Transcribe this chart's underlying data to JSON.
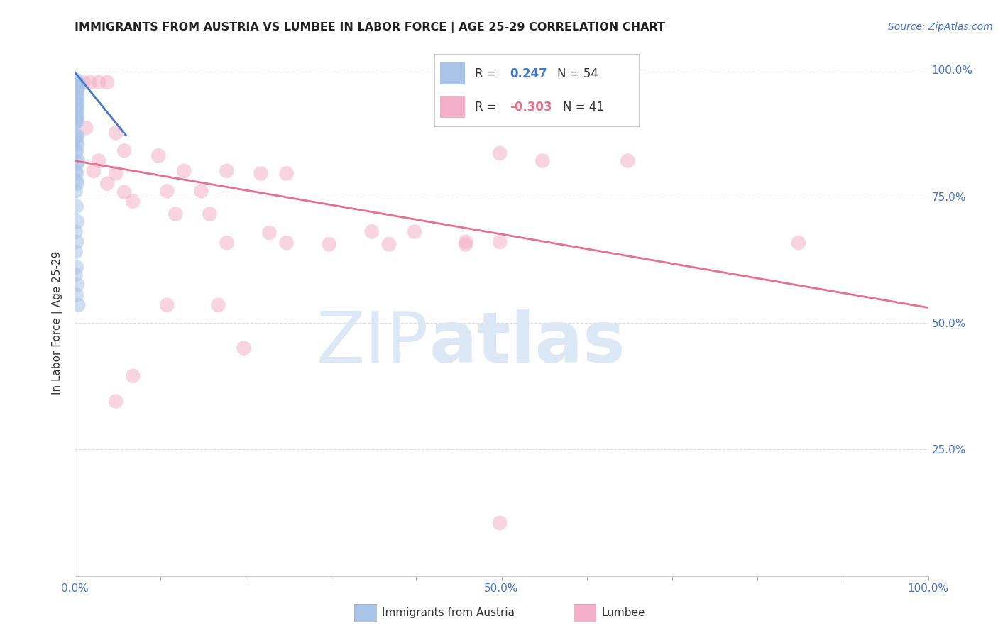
{
  "title": "IMMIGRANTS FROM AUSTRIA VS LUMBEE IN LABOR FORCE | AGE 25-29 CORRELATION CHART",
  "source": "Source: ZipAtlas.com",
  "ylabel": "In Labor Force | Age 25-29",
  "xlim": [
    0.0,
    1.0
  ],
  "ylim": [
    0.0,
    1.0
  ],
  "xticklabels": [
    "0.0%",
    "",
    "",
    "",
    "",
    "50.0%",
    "",
    "",
    "",
    "",
    "100.0%"
  ],
  "yticklabels_right": [
    "25.0%",
    "50.0%",
    "75.0%",
    "100.0%"
  ],
  "yticks_right": [
    0.25,
    0.5,
    0.75,
    1.0
  ],
  "austria_color": "#aac4e8",
  "lumbee_color": "#f4afc8",
  "austria_line_color": "#4477cc",
  "lumbee_line_color": "#e8708a",
  "background_color": "#ffffff",
  "grid_color": "#dddddd",
  "right_axis_color": "#4477cc",
  "watermark_color": "#dce8f5",
  "austria_scatter": [
    [
      0.001,
      0.98
    ],
    [
      0.002,
      0.975
    ],
    [
      0.003,
      0.973
    ],
    [
      0.002,
      0.97
    ],
    [
      0.001,
      0.968
    ],
    [
      0.003,
      0.965
    ],
    [
      0.002,
      0.963
    ],
    [
      0.001,
      0.96
    ],
    [
      0.003,
      0.958
    ],
    [
      0.004,
      0.972
    ],
    [
      0.005,
      0.968
    ],
    [
      0.001,
      0.955
    ],
    [
      0.002,
      0.952
    ],
    [
      0.003,
      0.948
    ],
    [
      0.001,
      0.945
    ],
    [
      0.002,
      0.942
    ],
    [
      0.001,
      0.938
    ],
    [
      0.003,
      0.935
    ],
    [
      0.002,
      0.932
    ],
    [
      0.001,
      0.928
    ],
    [
      0.002,
      0.925
    ],
    [
      0.003,
      0.922
    ],
    [
      0.001,
      0.918
    ],
    [
      0.002,
      0.915
    ],
    [
      0.001,
      0.912
    ],
    [
      0.002,
      0.908
    ],
    [
      0.003,
      0.905
    ],
    [
      0.001,
      0.9
    ],
    [
      0.002,
      0.898
    ],
    [
      0.001,
      0.895
    ],
    [
      0.002,
      0.87
    ],
    [
      0.003,
      0.868
    ],
    [
      0.001,
      0.865
    ],
    [
      0.002,
      0.855
    ],
    [
      0.003,
      0.852
    ],
    [
      0.001,
      0.84
    ],
    [
      0.002,
      0.838
    ],
    [
      0.004,
      0.82
    ],
    [
      0.003,
      0.815
    ],
    [
      0.001,
      0.8
    ],
    [
      0.002,
      0.795
    ],
    [
      0.002,
      0.78
    ],
    [
      0.003,
      0.775
    ],
    [
      0.001,
      0.76
    ],
    [
      0.002,
      0.73
    ],
    [
      0.003,
      0.7
    ],
    [
      0.001,
      0.68
    ],
    [
      0.002,
      0.66
    ],
    [
      0.001,
      0.64
    ],
    [
      0.002,
      0.61
    ],
    [
      0.001,
      0.595
    ],
    [
      0.003,
      0.575
    ],
    [
      0.002,
      0.555
    ],
    [
      0.004,
      0.535
    ]
  ],
  "lumbee_scatter": [
    [
      0.01,
      0.975
    ],
    [
      0.018,
      0.975
    ],
    [
      0.028,
      0.975
    ],
    [
      0.038,
      0.975
    ],
    [
      0.013,
      0.885
    ],
    [
      0.048,
      0.875
    ],
    [
      0.058,
      0.84
    ],
    [
      0.028,
      0.82
    ],
    [
      0.022,
      0.8
    ],
    [
      0.048,
      0.795
    ],
    [
      0.038,
      0.775
    ],
    [
      0.058,
      0.758
    ],
    [
      0.068,
      0.74
    ],
    [
      0.098,
      0.83
    ],
    [
      0.128,
      0.8
    ],
    [
      0.108,
      0.76
    ],
    [
      0.148,
      0.76
    ],
    [
      0.118,
      0.715
    ],
    [
      0.158,
      0.715
    ],
    [
      0.178,
      0.8
    ],
    [
      0.218,
      0.795
    ],
    [
      0.178,
      0.658
    ],
    [
      0.248,
      0.658
    ],
    [
      0.168,
      0.535
    ],
    [
      0.228,
      0.678
    ],
    [
      0.198,
      0.45
    ],
    [
      0.068,
      0.395
    ],
    [
      0.048,
      0.345
    ],
    [
      0.348,
      0.68
    ],
    [
      0.398,
      0.68
    ],
    [
      0.458,
      0.66
    ],
    [
      0.498,
      0.66
    ],
    [
      0.498,
      0.835
    ],
    [
      0.548,
      0.82
    ],
    [
      0.458,
      0.655
    ],
    [
      0.648,
      0.82
    ],
    [
      0.848,
      0.658
    ],
    [
      0.498,
      0.105
    ],
    [
      0.368,
      0.655
    ],
    [
      0.298,
      0.655
    ],
    [
      0.248,
      0.795
    ],
    [
      0.108,
      0.535
    ]
  ],
  "austria_trendline_x": [
    0.0,
    0.06
  ],
  "austria_trendline_y": [
    0.995,
    0.87
  ],
  "lumbee_trendline_x": [
    0.0,
    1.0
  ],
  "lumbee_trendline_y": [
    0.82,
    0.53
  ]
}
